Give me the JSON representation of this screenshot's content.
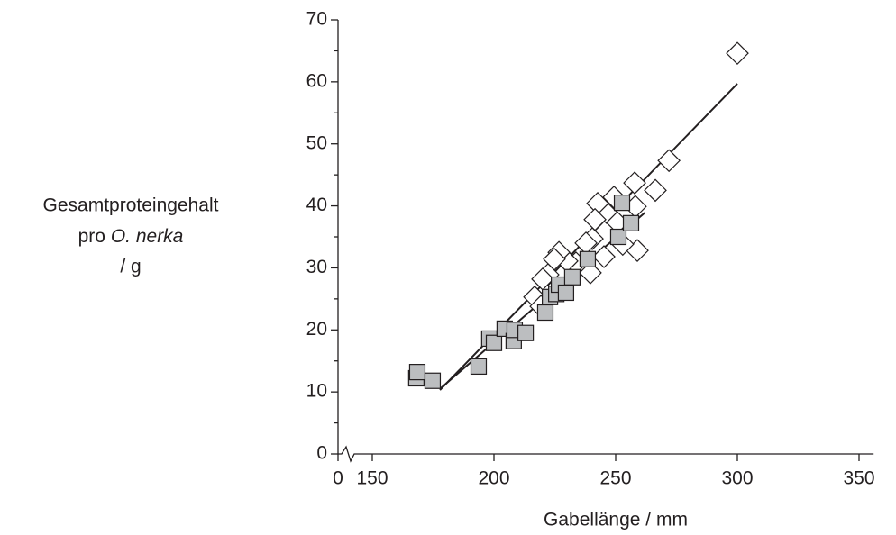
{
  "chart_data": {
    "type": "scatter",
    "xlabel": "Gabellänge / mm",
    "ylabel": {
      "line1": "Gesamtproteingehalt",
      "line2": "pro",
      "line2_italic": "O. nerka",
      "line3": "/ g"
    },
    "xlim": [
      0,
      356
    ],
    "x_break": [
      0,
      150
    ],
    "xticks": [
      0,
      150,
      200,
      250,
      300,
      350
    ],
    "ylim": [
      0,
      70
    ],
    "yticks": [
      0,
      10,
      20,
      30,
      40,
      50,
      60,
      70
    ],
    "series": [
      {
        "marker": "diamond",
        "color": "#ffffff",
        "x": [
          300,
          271.9,
          266.3,
          258.1,
          257.8,
          258.9,
          249.3,
          246.3,
          242.6,
          241.5,
          240.4,
          245.2,
          239.6,
          250.7,
          252.9,
          233.7,
          230,
          226.7,
          224.8,
          222.2,
          220,
          216.7,
          219.3,
          237.8
        ],
        "values": [
          64.6,
          47.3,
          42.5,
          39.9,
          43.7,
          32.8,
          41.4,
          38.9,
          40.4,
          37.8,
          34.7,
          31.8,
          29.2,
          37.3,
          33.8,
          30.8,
          31.1,
          32.5,
          31.4,
          28.9,
          28.2,
          25.3,
          23.8,
          34
        ]
      },
      {
        "marker": "square",
        "color": "#bcbec0",
        "x": [
          168.1,
          168.5,
          174.8,
          193.7,
          198.1,
          200,
          204.4,
          208.1,
          208.5,
          213,
          221.1,
          223,
          225.6,
          226.7,
          229.6,
          232.2,
          238.5,
          251.1,
          252.6,
          256.3
        ],
        "values": [
          12.2,
          13.2,
          11.8,
          14.1,
          18.6,
          17.9,
          20.2,
          18.2,
          20.0,
          19.5,
          22.8,
          25.3,
          25.8,
          27.3,
          26.0,
          28.5,
          31.4,
          35,
          40.5,
          37.2
        ]
      }
    ],
    "fit_lines": [
      {
        "x": [
          177.8,
          300
        ],
        "values": [
          10.3,
          59.7
        ],
        "color": "#231f20"
      },
      {
        "x": [
          177.8,
          262
        ],
        "values": [
          10.5,
          38.9
        ],
        "color": "#231f20"
      }
    ]
  }
}
